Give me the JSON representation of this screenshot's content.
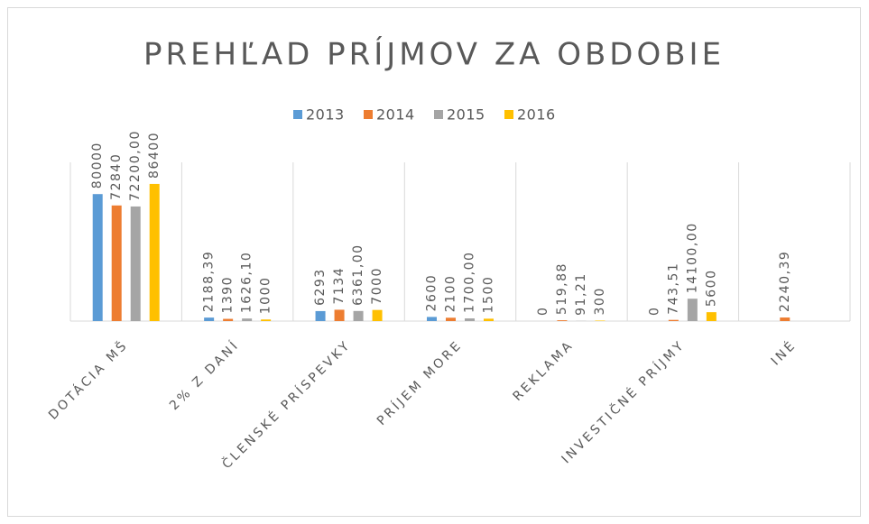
{
  "chart_data": {
    "type": "bar",
    "title": "PREHĽAD PRÍJMOV ZA OBDOBIE",
    "categories": [
      "DOTÁCIA MŠ",
      "2% Z DANÍ",
      "ČLENSKÉ PRÍSPEVKY",
      "PRÍJEM MORE",
      "REKLAMA",
      "INVESTIČNÉ PRÍJMY",
      "INÉ"
    ],
    "series": [
      {
        "name": "2013",
        "color": "#5b9bd5",
        "values": [
          80000,
          2188.39,
          6293,
          2600,
          0,
          0,
          null
        ],
        "value_labels": [
          "80000",
          "2188,39",
          "6293",
          "2600",
          "0",
          "0",
          null
        ]
      },
      {
        "name": "2014",
        "color": "#ed7d31",
        "values": [
          72840,
          1390,
          7134,
          2100,
          519.88,
          743.51,
          2240.39
        ],
        "value_labels": [
          "72840",
          "1390",
          "7134",
          "2100",
          "519,88",
          "743,51",
          "2240,39"
        ]
      },
      {
        "name": "2015",
        "color": "#a5a5a5",
        "values": [
          72200,
          1626.1,
          6361,
          1700,
          91.21,
          14100,
          null
        ],
        "value_labels": [
          "72200,00",
          "1626,10",
          "6361,00",
          "1700,00",
          "91,21",
          "14100,00",
          null
        ]
      },
      {
        "name": "2016",
        "color": "#ffc000",
        "values": [
          86400,
          1000,
          7000,
          1500,
          300,
          5600,
          null
        ],
        "value_labels": [
          "86400",
          "1000",
          "7000",
          "1500",
          "300",
          "5600",
          null
        ]
      }
    ],
    "ylim": [
      0,
      100000
    ],
    "legend": "top"
  }
}
